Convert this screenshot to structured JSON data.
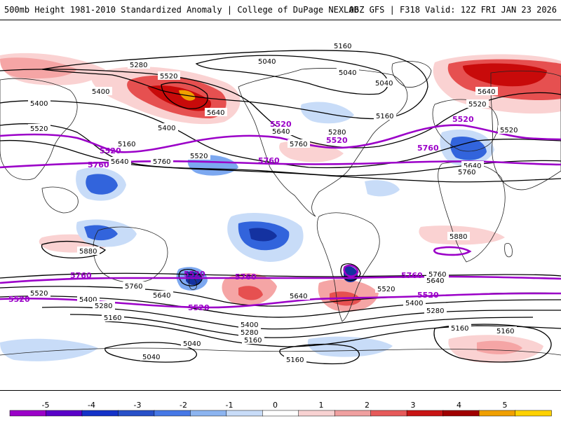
{
  "header": {
    "title": "500mb Height 1981-2010 Standardized Anomaly | College of DuPage NEXLAB",
    "run_info": "06Z GFS | F318 Valid: 12Z FRI JAN 23 2026"
  },
  "contours": {
    "l5160": "5160",
    "l5040": "5040",
    "l5280": "5280",
    "l5400": "5400",
    "l5520": "5520",
    "l5640": "5640",
    "l5760": "5760",
    "l5880": "5880"
  },
  "colorbar": {
    "ticks": [
      "-5",
      "-4",
      "-3",
      "-2",
      "-1",
      "0",
      "1",
      "2",
      "3",
      "4",
      "5"
    ],
    "colors": [
      "#9b00c8",
      "#5a00c8",
      "#1432c8",
      "#2850c8",
      "#4678e6",
      "#8cb4f0",
      "#c8dcf8",
      "#ffffff",
      "#f8d2d2",
      "#f0a0a0",
      "#e65a5a",
      "#c81414",
      "#a00000",
      "#f0a000",
      "#ffd200"
    ]
  },
  "palette": {
    "pos1": "#fad2d2",
    "pos2": "#f5a5a5",
    "pos3": "#e65050",
    "pos4": "#c80a0a",
    "pos5": "#f0a000",
    "neg1": "#c8dcf8",
    "neg2": "#7ca8f0",
    "neg3": "#3264dc",
    "neg4": "#1432a0",
    "thick": "#9b00c8",
    "contour": "#000000",
    "coast": "#222222"
  }
}
